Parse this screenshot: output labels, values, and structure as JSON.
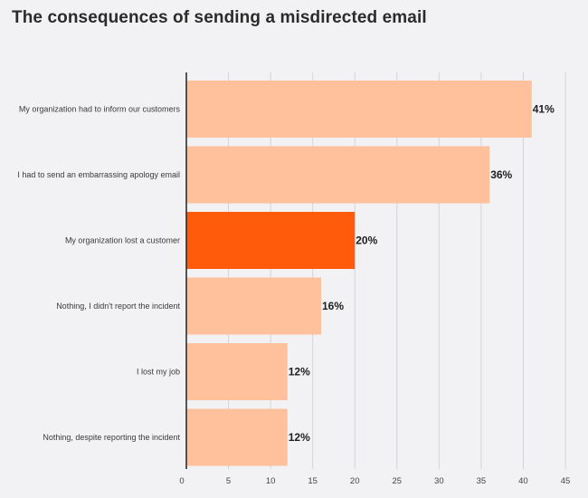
{
  "chart_data": {
    "type": "bar",
    "orientation": "horizontal",
    "title": "The consequences of sending a misdirected email",
    "categories": [
      "My organization had to inform our customers",
      "I had to send an embarrassing apology email",
      "My organization lost a customer",
      "Nothing, I didn't report the incident",
      "I lost my job",
      "Nothing, despite reporting the incident"
    ],
    "values": [
      41,
      36,
      20,
      16,
      12,
      12
    ],
    "value_labels": [
      "41%",
      "36%",
      "20%",
      "16%",
      "12%",
      "12%"
    ],
    "highlight_index": 2,
    "xlim": [
      0,
      45
    ],
    "x_ticks": [
      0,
      5,
      10,
      15,
      20,
      25,
      30,
      35,
      40,
      45
    ],
    "x_tick_labels": [
      "0",
      "5",
      "10",
      "15",
      "20",
      "25",
      "30",
      "35",
      "40",
      "45"
    ],
    "grid": "vertical",
    "legend": "none",
    "colors": {
      "bar": "#ffc09c",
      "highlight": "#ff5b0a",
      "grid": "#d4d4d8",
      "axis": "#222222",
      "background": "#f2f2f4"
    }
  }
}
